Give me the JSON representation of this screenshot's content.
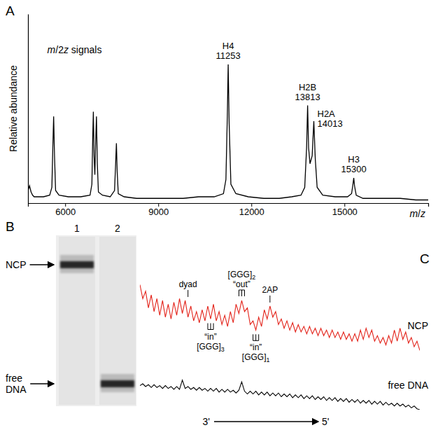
{
  "chart_data": [
    {
      "type": "line",
      "title": "A",
      "xlabel": "m/z",
      "ylabel": "Relative abundance",
      "x": [
        4800,
        4850,
        4900,
        4950,
        5000,
        5100,
        5300,
        5500,
        5570,
        5600,
        5627,
        5655,
        5690,
        5800,
        6100,
        6500,
        6800,
        6860,
        6885,
        6907,
        6930,
        6955,
        6980,
        7007,
        7035,
        7070,
        7200,
        7450,
        7590,
        7625,
        7650,
        7675,
        7710,
        7900,
        8300,
        8800,
        9300,
        9800,
        10300,
        10800,
        11100,
        11180,
        11225,
        11253,
        11285,
        11340,
        11500,
        11900,
        12400,
        12900,
        13300,
        13600,
        13720,
        13780,
        13813,
        13845,
        13890,
        13960,
        14013,
        14060,
        14120,
        14300,
        14700,
        15100,
        15230,
        15275,
        15300,
        15325,
        15380,
        15600,
        16200,
        16800,
        17300,
        17700
      ],
      "values": [
        8,
        11,
        7,
        5,
        4,
        4,
        4,
        5,
        10,
        35,
        55,
        30,
        8,
        5,
        4,
        4,
        5,
        12,
        40,
        58,
        30,
        18,
        38,
        55,
        25,
        7,
        5,
        4,
        8,
        25,
        38,
        20,
        6,
        4,
        3,
        3,
        3,
        3,
        4,
        4,
        6,
        15,
        55,
        88,
        50,
        12,
        6,
        4,
        3,
        3,
        4,
        5,
        10,
        35,
        62,
        35,
        25,
        30,
        52,
        28,
        10,
        5,
        4,
        4,
        6,
        12,
        16,
        11,
        5,
        3,
        3,
        3,
        2,
        2
      ],
      "color": "#000000",
      "xlim": [
        4800,
        17700
      ],
      "ylim": [
        0,
        120
      ],
      "xticks": [
        6000,
        9000,
        12000,
        15000
      ],
      "yticks": [],
      "tick_labels": "x",
      "annotations": [
        {
          "text": "m/2z signals",
          "x": 6300,
          "y": 95
        }
      ],
      "peaks": [
        {
          "name": "H4",
          "x": 11253
        },
        {
          "name": "H2B",
          "x": 13813
        },
        {
          "name": "H2A",
          "x": 14013
        },
        {
          "name": "H3",
          "x": 15300
        }
      ]
    },
    {
      "type": "gel",
      "title": "B",
      "lanes": [
        "1",
        "2"
      ],
      "bands": [
        {
          "lane": "1",
          "label": "NCP"
        },
        {
          "lane": "2",
          "label": "free DNA"
        }
      ]
    },
    {
      "type": "line",
      "title": "C",
      "x": [
        0,
        1,
        2,
        3,
        4,
        5,
        6,
        7,
        8,
        9,
        10,
        11,
        12,
        13,
        14,
        15,
        16,
        17,
        18,
        19,
        20,
        21,
        22,
        23,
        24,
        25,
        26,
        27,
        28,
        29,
        30,
        31,
        32,
        33,
        34,
        35,
        36,
        37,
        38,
        39,
        40,
        41,
        42,
        43,
        44,
        45,
        46,
        47,
        48,
        49,
        50,
        51,
        52,
        53,
        54,
        55,
        56,
        57,
        58,
        59,
        60,
        61,
        62,
        63,
        64,
        65,
        66,
        67,
        68,
        69,
        70,
        71,
        72,
        73,
        74,
        75,
        76,
        77,
        78,
        79,
        80,
        81,
        82,
        83,
        84,
        85,
        86,
        87,
        88,
        89,
        90,
        91,
        92,
        93,
        94,
        95,
        96,
        97,
        98,
        99
      ],
      "xlim": [
        0,
        99
      ],
      "ylim": [
        -40,
        100
      ],
      "tick_labels": false,
      "series": [
        {
          "name": "NCP",
          "color": "#e3241b",
          "values": [
            95,
            80,
            88,
            70,
            84,
            66,
            80,
            62,
            78,
            60,
            74,
            58,
            76,
            62,
            80,
            64,
            78,
            60,
            72,
            56,
            66,
            54,
            68,
            56,
            72,
            58,
            74,
            56,
            66,
            52,
            62,
            50,
            66,
            54,
            74,
            64,
            78,
            66,
            70,
            52,
            56,
            46,
            60,
            50,
            68,
            58,
            72,
            60,
            66,
            52,
            58,
            48,
            56,
            46,
            54,
            44,
            52,
            44,
            50,
            42,
            50,
            42,
            48,
            40,
            48,
            40,
            46,
            38,
            46,
            38,
            44,
            36,
            44,
            36,
            42,
            34,
            42,
            34,
            46,
            36,
            48,
            38,
            46,
            34,
            40,
            32,
            38,
            30,
            40,
            32,
            46,
            34,
            48,
            36,
            44,
            32,
            38,
            28,
            34,
            24
          ]
        },
        {
          "name": "free DNA",
          "color": "#000000",
          "values": [
            -14,
            -12,
            -15,
            -13,
            -16,
            -13,
            -16,
            -14,
            -17,
            -14,
            -17,
            -15,
            -18,
            -15,
            -18,
            -8,
            -17,
            -15,
            -18,
            -16,
            -19,
            -16,
            -19,
            -17,
            -20,
            -17,
            -20,
            -17,
            -21,
            -18,
            -21,
            -18,
            -21,
            -19,
            -22,
            -19,
            -10,
            -20,
            -23,
            -20,
            -23,
            -20,
            -24,
            -21,
            -24,
            -21,
            -25,
            -22,
            -25,
            -22,
            -26,
            -23,
            -26,
            -23,
            -27,
            -24,
            -27,
            -24,
            -28,
            -25,
            -28,
            -25,
            -29,
            -26,
            -29,
            -26,
            -30,
            -27,
            -30,
            -27,
            -31,
            -28,
            -31,
            -28,
            -32,
            -29,
            -32,
            -29,
            -33,
            -30,
            -33,
            -30,
            -34,
            -31,
            -34,
            -31,
            -35,
            -32,
            -35,
            -33,
            -36,
            -33,
            -36,
            -34,
            -37,
            -35,
            -38,
            -36,
            -39,
            -40
          ]
        }
      ],
      "annotations": [
        {
          "text": "dyad",
          "x": 17,
          "marker": "tick"
        },
        {
          "text": "[GGG]2",
          "note": "“out”",
          "x": 36,
          "marker": "bracket"
        },
        {
          "text": "[GGG]3",
          "note": "“in”",
          "x": 25,
          "marker": "inverted-bracket"
        },
        {
          "text": "[GGG]1",
          "note": "“in”",
          "x": 41,
          "marker": "inverted-bracket"
        },
        {
          "text": "2AP",
          "x": 46,
          "marker": "tick"
        }
      ],
      "direction": [
        "3'",
        "5'"
      ]
    }
  ]
}
